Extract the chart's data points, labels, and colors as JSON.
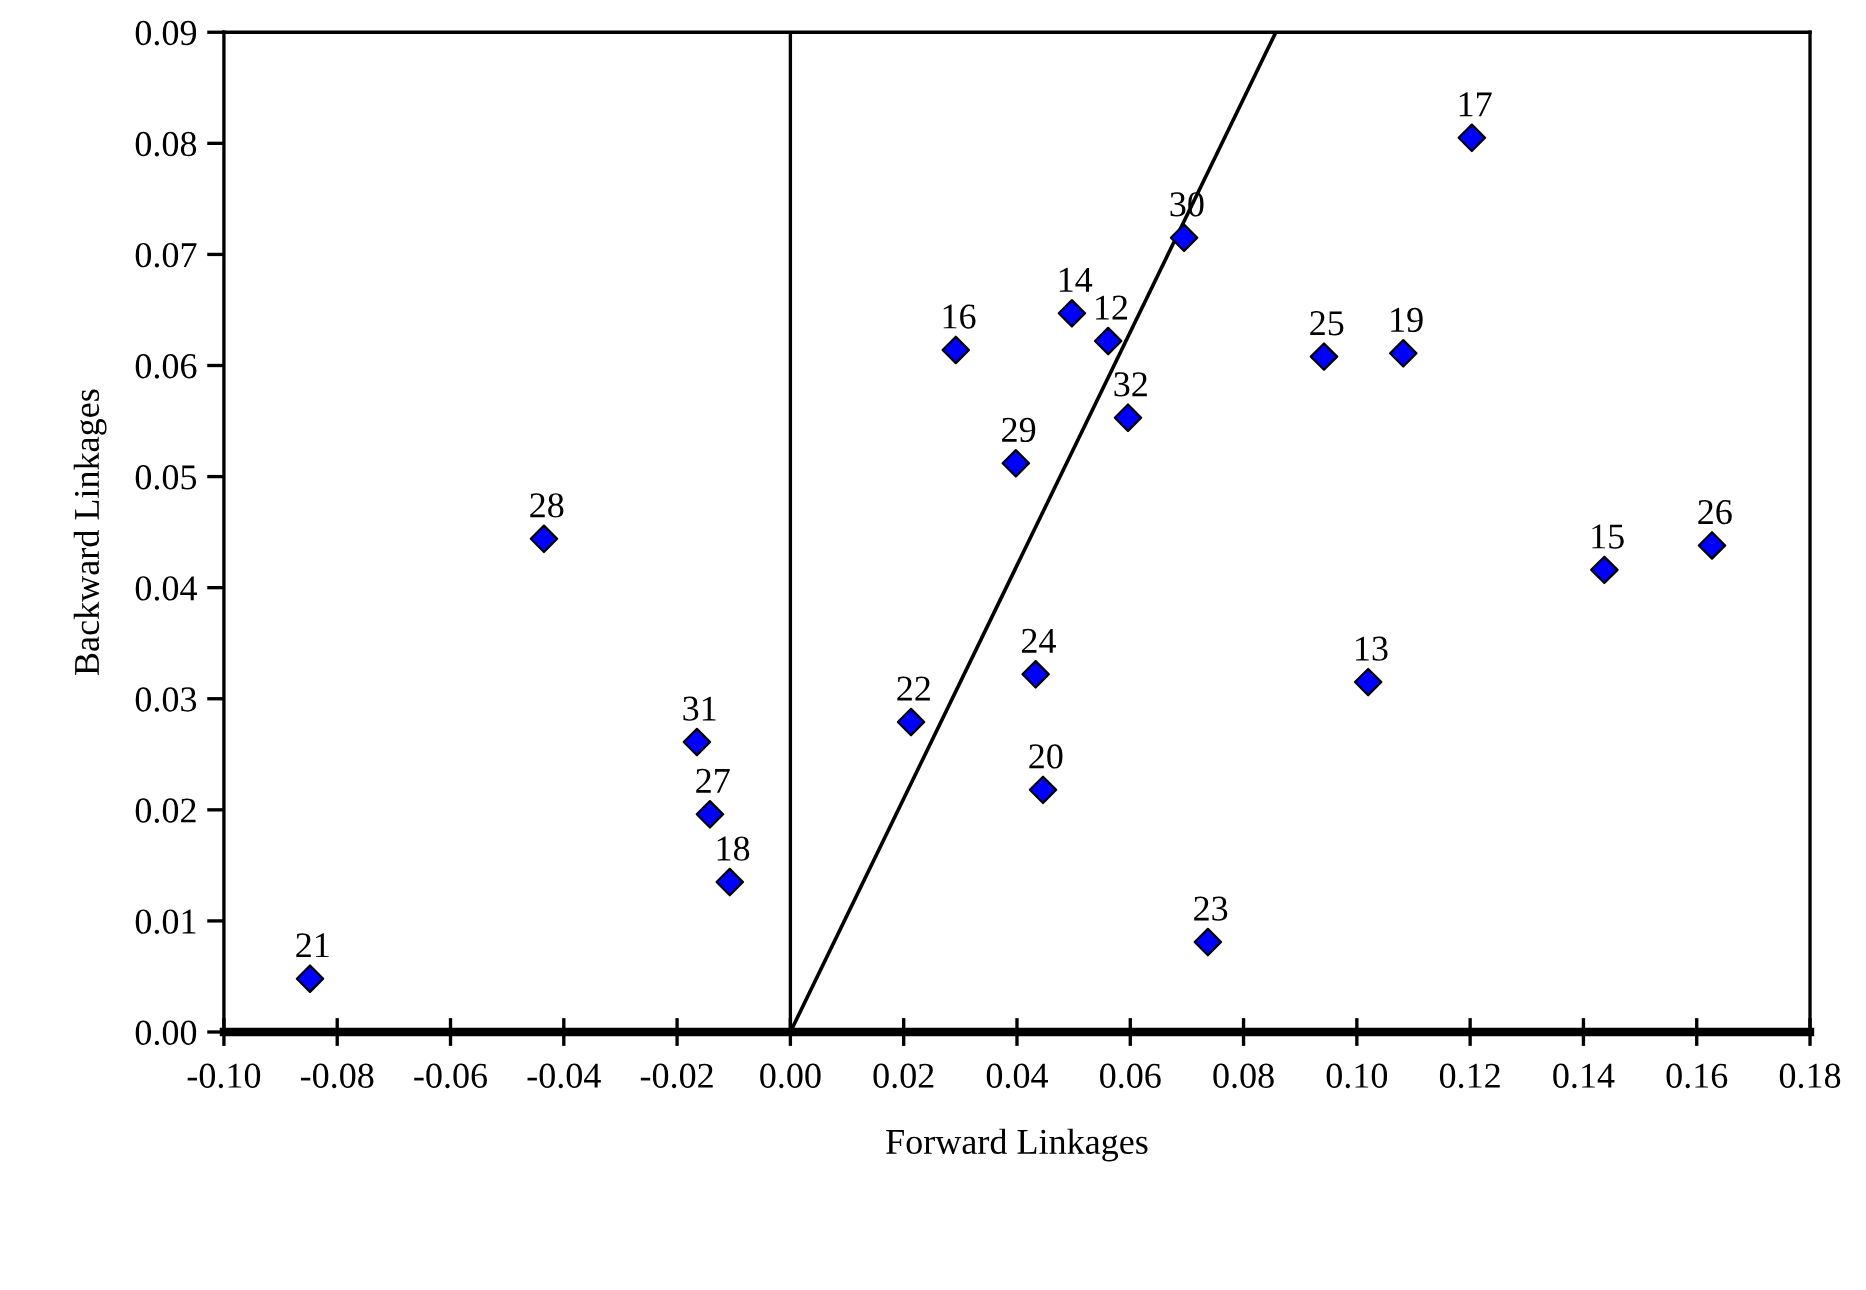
{
  "chart_data": {
    "type": "scatter",
    "xlabel": "Forward Linkages",
    "ylabel": "Backward Linkages",
    "xlim": [
      -0.1,
      0.18
    ],
    "ylim": [
      0,
      0.09
    ],
    "xticks": [
      {
        "value": -0.1,
        "label": "-0.10"
      },
      {
        "value": -0.08,
        "label": "-0.08"
      },
      {
        "value": -0.06,
        "label": "-0.06"
      },
      {
        "value": -0.04,
        "label": "-0.04"
      },
      {
        "value": -0.02,
        "label": "-0.02"
      },
      {
        "value": 0,
        "label": "0.00"
      },
      {
        "value": 0.02,
        "label": "0.02"
      },
      {
        "value": 0.04,
        "label": "0.04"
      },
      {
        "value": 0.06,
        "label": "0.06"
      },
      {
        "value": 0.08,
        "label": "0.08"
      },
      {
        "value": 0.1,
        "label": "0.10"
      },
      {
        "value": 0.12,
        "label": "0.12"
      },
      {
        "value": 0.14,
        "label": "0.14"
      },
      {
        "value": 0.16,
        "label": "0.16"
      },
      {
        "value": 0.18,
        "label": "0.18"
      }
    ],
    "yticks": [
      {
        "value": 0,
        "label": "0.00"
      },
      {
        "value": 0.01,
        "label": "0.01"
      },
      {
        "value": 0.02,
        "label": "0.02"
      },
      {
        "value": 0.03,
        "label": "0.03"
      },
      {
        "value": 0.04,
        "label": "0.04"
      },
      {
        "value": 0.05,
        "label": "0.05"
      },
      {
        "value": 0.06,
        "label": "0.06"
      },
      {
        "value": 0.07,
        "label": "0.07"
      },
      {
        "value": 0.08,
        "label": "0.08"
      },
      {
        "value": 0.09,
        "label": "0.09"
      }
    ],
    "grid": false,
    "legend": false,
    "ref_lines": [
      {
        "axis": "x",
        "value": 0,
        "color": "#000000"
      }
    ],
    "series": [
      {
        "type": "line",
        "color": "#000000",
        "marker": "none",
        "line_style": "solid",
        "x": [
          0,
          0.0857
        ],
        "values": [
          0,
          0.09
        ]
      },
      {
        "color": "#0000ff",
        "marker": "diamond",
        "x": [
          -0.0848,
          -0.0435,
          -0.0165,
          -0.0142,
          -0.0107,
          0.0292,
          0.0398,
          0.0497,
          0.0561,
          0.0596,
          0.0695,
          0.0942,
          0.1082,
          0.1203,
          0.1437,
          0.1627,
          0.0433,
          0.102,
          0.0213,
          0.0446,
          0.0737
        ],
        "values": [
          0.0048,
          0.0444,
          0.0261,
          0.0196,
          0.0135,
          0.0614,
          0.0512,
          0.0647,
          0.0622,
          0.0553,
          0.0715,
          0.0608,
          0.0611,
          0.0805,
          0.0416,
          0.0438,
          0.0322,
          0.0315,
          0.0279,
          0.0218,
          0.0081
        ]
      }
    ],
    "annotations": [
      {
        "text": "21",
        "x": -0.0848,
        "y": 0.0048
      },
      {
        "text": "28",
        "x": -0.0435,
        "y": 0.0444
      },
      {
        "text": "31",
        "x": -0.0165,
        "y": 0.0261
      },
      {
        "text": "27",
        "x": -0.0142,
        "y": 0.0196
      },
      {
        "text": "18",
        "x": -0.0107,
        "y": 0.0135
      },
      {
        "text": "16",
        "x": 0.0292,
        "y": 0.0614
      },
      {
        "text": "29",
        "x": 0.0398,
        "y": 0.0512
      },
      {
        "text": "14",
        "x": 0.0497,
        "y": 0.0647
      },
      {
        "text": "12",
        "x": 0.0561,
        "y": 0.0622
      },
      {
        "text": "32",
        "x": 0.0596,
        "y": 0.0553
      },
      {
        "text": "30",
        "x": 0.0695,
        "y": 0.0715
      },
      {
        "text": "25",
        "x": 0.0942,
        "y": 0.0608
      },
      {
        "text": "19",
        "x": 0.1082,
        "y": 0.0611
      },
      {
        "text": "17",
        "x": 0.1203,
        "y": 0.0805
      },
      {
        "text": "15",
        "x": 0.1437,
        "y": 0.0416
      },
      {
        "text": "26",
        "x": 0.1627,
        "y": 0.0438
      },
      {
        "text": "24",
        "x": 0.0433,
        "y": 0.0322
      },
      {
        "text": "13",
        "x": 0.102,
        "y": 0.0315
      },
      {
        "text": "22",
        "x": 0.0213,
        "y": 0.0279
      },
      {
        "text": "20",
        "x": 0.0446,
        "y": 0.0218
      },
      {
        "text": "23",
        "x": 0.0737,
        "y": 0.0081
      }
    ]
  }
}
